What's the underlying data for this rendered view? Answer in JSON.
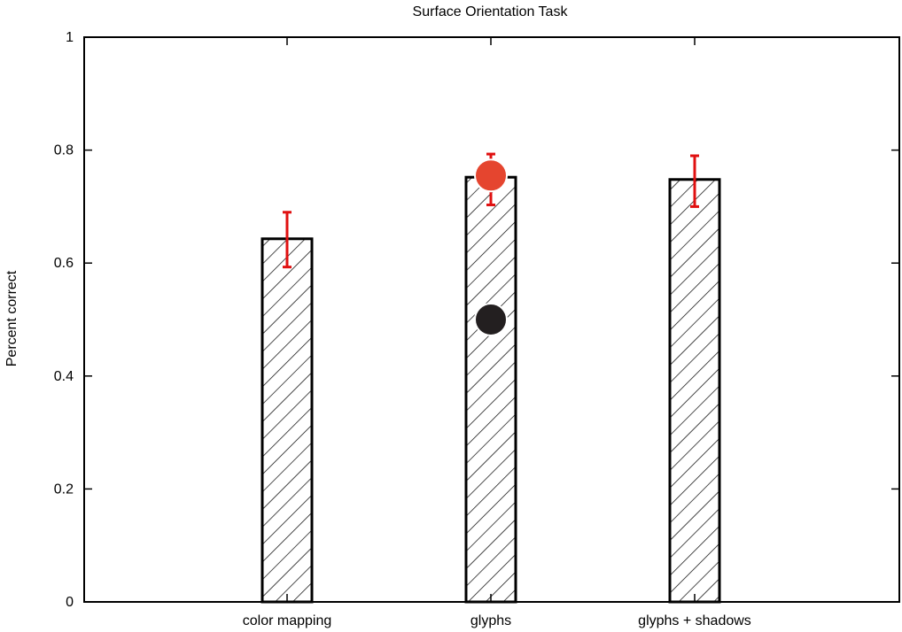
{
  "chart_data": {
    "type": "bar",
    "title": "Surface Orientation Task",
    "xlabel": "",
    "ylabel": "Percent correct",
    "ylim": [
      0,
      1
    ],
    "yticks": [
      "0",
      "0.2",
      "0.4",
      "0.6",
      "0.8",
      "1"
    ],
    "categories": [
      "color mapping",
      "glyphs",
      "glyphs + shadows"
    ],
    "values": [
      0.643,
      0.752,
      0.748
    ],
    "error_bars": [
      {
        "low": 0.593,
        "high": 0.69
      },
      {
        "low": 0.703,
        "high": 0.793
      },
      {
        "low": 0.7,
        "high": 0.79
      }
    ],
    "markers": [
      {
        "category": "glyphs",
        "value": 0.755,
        "color": "#e5452f"
      },
      {
        "category": "glyphs",
        "value": 0.5,
        "color": "#231f20"
      }
    ],
    "bar_fill": "diagonal-hatch",
    "error_bar_color": "#e01010",
    "grid": false
  }
}
